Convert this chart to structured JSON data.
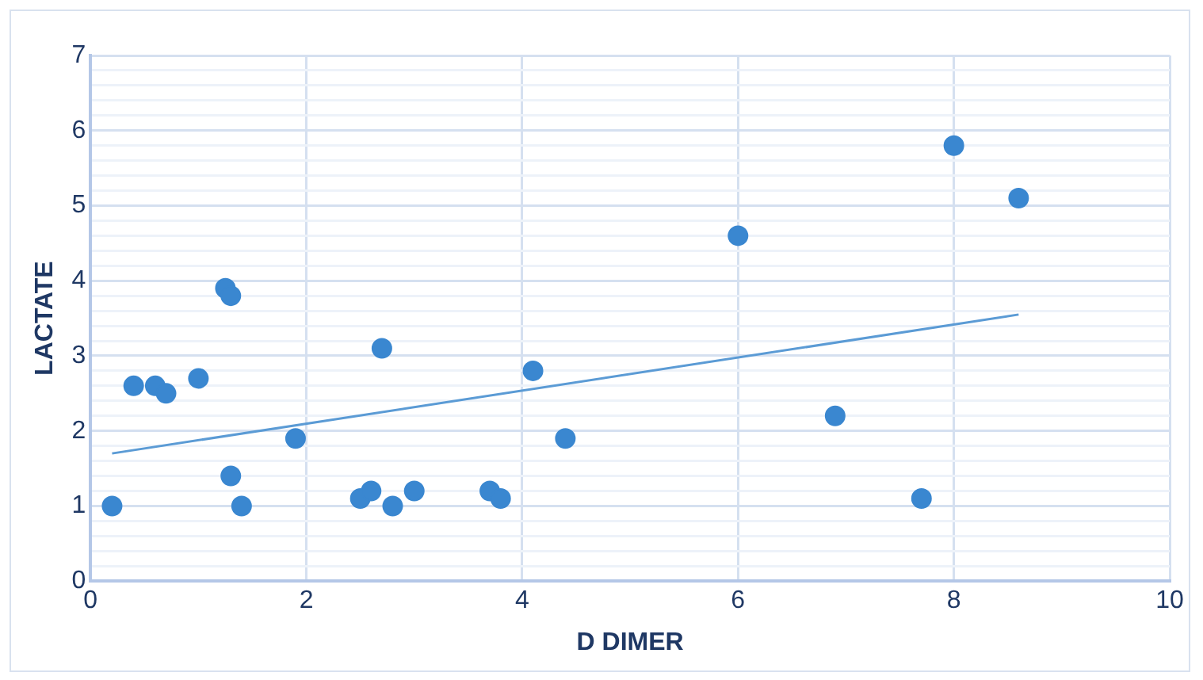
{
  "chart_data": {
    "type": "scatter",
    "xlabel": "D DIMER",
    "ylabel": "LACTATE",
    "xlim": [
      0,
      10
    ],
    "xticks": [
      0,
      2,
      4,
      6,
      8,
      10
    ],
    "ylim": [
      0,
      7
    ],
    "yticks": [
      0,
      {
        "value": 0.2,
        "label": null
      },
      {
        "value": 0.4,
        "label": null
      },
      {
        "value": 0.6,
        "label": null
      },
      {
        "value": 0.8,
        "label": null
      },
      1,
      {
        "value": 1.2,
        "label": null
      },
      {
        "value": 1.4,
        "label": null
      },
      {
        "value": 1.6,
        "label": null
      },
      {
        "value": 1.8,
        "label": null
      },
      2,
      {
        "value": 2.2,
        "label": null
      },
      {
        "value": 2.4,
        "label": null
      },
      {
        "value": 2.6,
        "label": null
      },
      {
        "value": 2.8,
        "label": null
      },
      3,
      {
        "value": 3.2,
        "label": null
      },
      {
        "value": 3.4,
        "label": null
      },
      {
        "value": 3.6,
        "label": null
      },
      {
        "value": 3.8,
        "label": null
      },
      4,
      {
        "value": 4.2,
        "label": null
      },
      {
        "value": 4.4,
        "label": null
      },
      {
        "value": 4.6,
        "label": null
      },
      {
        "value": 4.8,
        "label": null
      },
      5,
      {
        "value": 5.2,
        "label": null
      },
      {
        "value": 5.4,
        "label": null
      },
      {
        "value": 5.6,
        "label": null
      },
      {
        "value": 5.8,
        "label": null
      },
      6,
      {
        "value": 6.2,
        "label": null
      },
      {
        "value": 6.4,
        "label": null
      },
      {
        "value": 6.6,
        "label": null
      },
      {
        "value": 6.8,
        "label": null
      },
      7
    ],
    "grid": true,
    "series": [
      {
        "marker": "circle",
        "color": "#3a87d0",
        "x": [
          0.2,
          0.4,
          0.6,
          0.7,
          1.0,
          1.25,
          1.3,
          1.3,
          1.4,
          1.9,
          2.5,
          2.6,
          2.7,
          2.8,
          3.0,
          3.7,
          3.8,
          4.1,
          4.4,
          6.0,
          6.9,
          7.7,
          8.0,
          8.6
        ],
        "values": [
          1.0,
          2.6,
          2.6,
          2.5,
          2.7,
          3.9,
          3.8,
          1.4,
          1.0,
          1.9,
          1.1,
          1.2,
          3.1,
          1.0,
          1.2,
          1.2,
          1.1,
          2.8,
          1.9,
          4.6,
          2.2,
          1.1,
          5.8,
          5.1
        ]
      },
      {
        "type": "line",
        "marker": "none",
        "color": "#5b9bd5",
        "x": [
          0.2,
          8.6
        ],
        "values": [
          1.7,
          3.55
        ]
      }
    ]
  }
}
